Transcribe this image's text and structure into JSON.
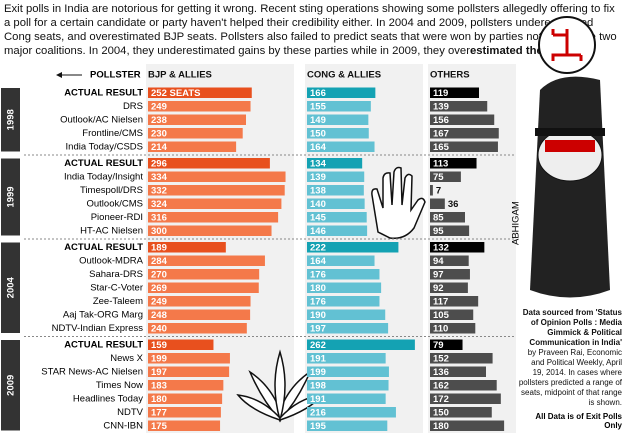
{
  "chart_data": {
    "type": "bar",
    "intro": "Exit polls in India are notorious for getting it wrong. Recent sting operations showing some pollsters allegedly offering to fix a poll for a certain candidate or party haven't helped their credibility either. In 2004 and 2009, pollsters underestimated Cong seats, and overestimated BJP seats. Pollsters also failed to predict seats that were won by parties not part of the two major coalitions. In 2004, they underestimated gains by these parties while in 2009, they over",
    "intro_emphasis": "estimated them",
    "category_label": "POLLSTER",
    "series": [
      {
        "name": "BJP & ALLIES",
        "color": "#f4794a",
        "actual_color": "#e8501e"
      },
      {
        "name": "CONG & ALLIES",
        "color": "#62c1d3",
        "actual_color": "#14a2b3"
      },
      {
        "name": "OTHERS",
        "color": "#4d4d4d",
        "actual_color": "#000000"
      }
    ],
    "xlim": [
      0,
      340
    ],
    "groups": [
      {
        "label": "1998",
        "categories": [
          "ACTUAL RESULT",
          "DRS",
          "Outlook/AC Nielsen",
          "Frontline/CMS",
          "India Today/CSDS"
        ],
        "series": [
          {
            "values": [
              252,
              249,
              238,
              230,
              214
            ],
            "value_labels": [
              "252 SEATS",
              "249",
              "238",
              "230",
              "214"
            ]
          },
          {
            "values": [
              166,
              155,
              149,
              150,
              164
            ]
          },
          {
            "values": [
              119,
              139,
              156,
              167,
              165
            ]
          }
        ]
      },
      {
        "label": "1999",
        "categories": [
          "ACTUAL RESULT",
          "India Today/Insight",
          "Timespoll/DRS",
          "Outlook/CMS",
          "Pioneer-RDI",
          "HT-AC Nielsen"
        ],
        "series": [
          {
            "values": [
              296,
              334,
              332,
              324,
              316,
              300
            ]
          },
          {
            "values": [
              134,
              139,
              138,
              140,
              145,
              146
            ]
          },
          {
            "values": [
              113,
              75,
              7,
              36,
              85,
              95
            ]
          }
        ]
      },
      {
        "label": "2004",
        "categories": [
          "ACTUAL RESULT",
          "Outlook-MDRA",
          "Sahara-DRS",
          "Star-C-Voter",
          "Zee-Taleem",
          "Aaj Tak-ORG Marg",
          "NDTV-Indian Express"
        ],
        "series": [
          {
            "values": [
              189,
              284,
              270,
              269,
              249,
              248,
              240
            ]
          },
          {
            "values": [
              222,
              164,
              176,
              180,
              176,
              190,
              197
            ]
          },
          {
            "values": [
              132,
              94,
              97,
              92,
              117,
              105,
              110
            ]
          }
        ]
      },
      {
        "label": "2009",
        "categories": [
          "ACTUAL RESULT",
          "News X",
          "STAR News-AC Nielsen",
          "Times Now",
          "Headlines Today",
          "NDTV",
          "CNN-IBN"
        ],
        "series": [
          {
            "values": [
              159,
              199,
              197,
              183,
              180,
              177,
              175
            ]
          },
          {
            "values": [
              262,
              191,
              199,
              198,
              191,
              216,
              195
            ]
          },
          {
            "values": [
              79,
              152,
              136,
              162,
              172,
              150,
              180
            ]
          }
        ]
      }
    ],
    "artist": "ABHIGAM",
    "source_title": "Data sourced from 'Status of Opinion Polls : Media Gimmick & Political Communication in India'",
    "source_text": "by Praveen Rai, Economic and Political Weekly, April 19, 2014. In cases where pollsters predicted a range of seats, midpoint of that range is shown.",
    "footnote": "All Data is of Exit Polls Only"
  }
}
